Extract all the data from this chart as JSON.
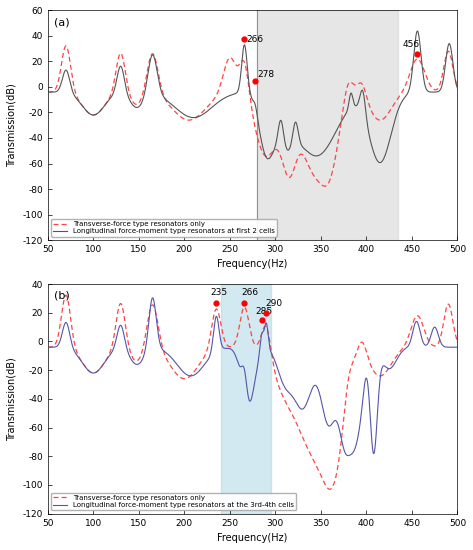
{
  "title_a": "(a)",
  "title_b": "(b)",
  "xlabel": "Frequency(Hz)",
  "ylabel": "Transmission(dB)",
  "xlim": [
    50,
    500
  ],
  "ylim_a": [
    -120,
    60
  ],
  "ylim_b": [
    -120,
    40
  ],
  "yticks_a": [
    -120,
    -100,
    -80,
    -60,
    -40,
    -20,
    0,
    20,
    40,
    60
  ],
  "yticks_b": [
    -120,
    -100,
    -80,
    -60,
    -40,
    -20,
    0,
    20,
    40
  ],
  "xticks": [
    50,
    100,
    150,
    200,
    250,
    300,
    350,
    400,
    450,
    500
  ],
  "legend_a_line1": "Transverse-force type resonators only",
  "legend_a_line2": "Longitudinal force-moment type resonators at first 2 cells",
  "legend_b_line1": "Transverse-force type resonators only",
  "legend_b_line2": "Longitudinal force-moment type resonators at the 3rd-4th cells",
  "color_dashed": "#FF4444",
  "color_solid_a": "#555555",
  "color_solid_b": "#5555AA",
  "shade_a_x1": 280,
  "shade_a_x2": 435,
  "shade_b_x1": 240,
  "shade_b_x2": 295
}
